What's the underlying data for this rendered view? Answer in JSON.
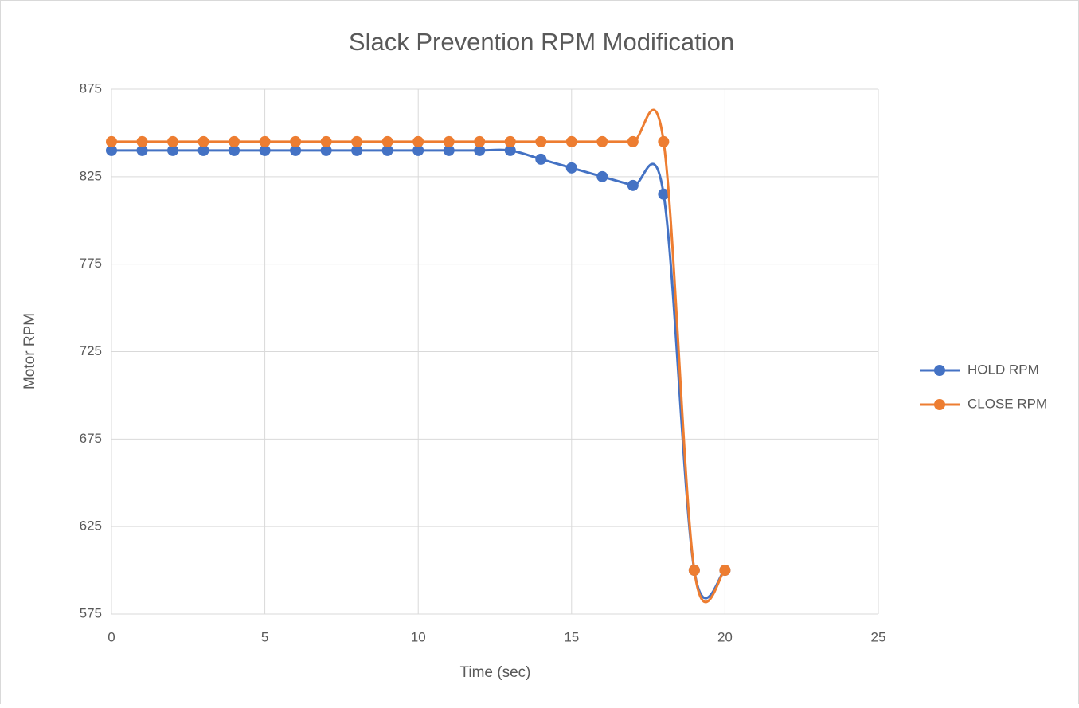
{
  "chart_data": {
    "type": "line",
    "title": "Slack Prevention RPM Modification",
    "x_label": "Time (sec)",
    "y_label": "Motor RPM",
    "x": [
      0,
      1,
      2,
      3,
      4,
      5,
      6,
      7,
      8,
      9,
      10,
      11,
      12,
      13,
      14,
      15,
      16,
      17,
      18,
      19,
      20
    ],
    "series": [
      {
        "name": "HOLD RPM",
        "color": "#4472c4",
        "values": [
          840,
          840,
          840,
          840,
          840,
          840,
          840,
          840,
          840,
          840,
          840,
          840,
          840,
          840,
          835,
          830,
          825,
          820,
          815,
          600,
          600
        ]
      },
      {
        "name": "CLOSE RPM",
        "color": "#ed7d31",
        "values": [
          845,
          845,
          845,
          845,
          845,
          845,
          845,
          845,
          845,
          845,
          845,
          845,
          845,
          845,
          845,
          845,
          845,
          845,
          845,
          600,
          600
        ]
      }
    ],
    "xlim": [
      0,
      25
    ],
    "xticks": [
      0,
      5,
      10,
      15,
      20,
      25
    ],
    "ylim": [
      575,
      875
    ],
    "yticks": [
      575,
      625,
      675,
      725,
      775,
      825,
      875
    ],
    "grid": true,
    "smooth": true,
    "legend": "right"
  }
}
